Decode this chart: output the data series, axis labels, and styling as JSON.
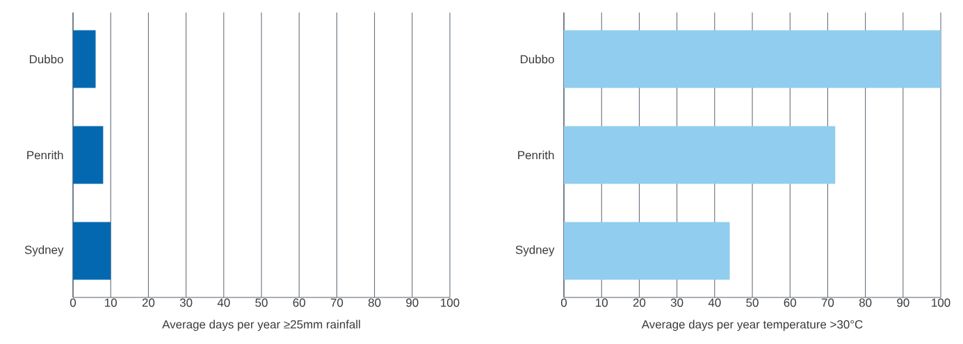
{
  "chart_data": [
    {
      "type": "bar",
      "orientation": "horizontal",
      "categories": [
        "Dubbo",
        "Penrith",
        "Sydney"
      ],
      "values": [
        6,
        8,
        10
      ],
      "color": "#0468b1",
      "xlabel": "Average days per year ≥25mm rainfall",
      "xlim": [
        0,
        100
      ],
      "xticks": [
        0,
        10,
        20,
        30,
        40,
        50,
        60,
        70,
        80,
        90,
        100
      ],
      "grid": "x"
    },
    {
      "type": "bar",
      "orientation": "horizontal",
      "categories": [
        "Dubbo",
        "Penrith",
        "Sydney"
      ],
      "values": [
        100,
        72,
        44
      ],
      "color": "#90cdee",
      "xlabel": "Average days per year temperature >30°C",
      "xlim": [
        0,
        100
      ],
      "xticks": [
        0,
        10,
        20,
        30,
        40,
        50,
        60,
        70,
        80,
        90,
        100
      ],
      "grid": "x"
    }
  ]
}
